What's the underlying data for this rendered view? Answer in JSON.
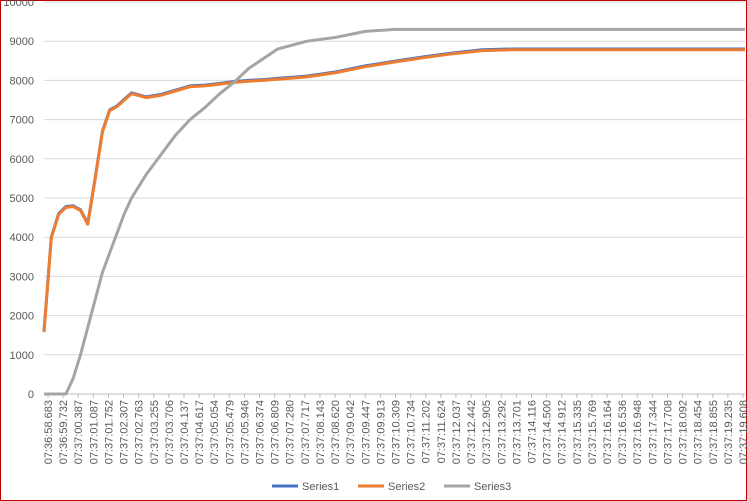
{
  "chart_data": {
    "type": "line",
    "title": "",
    "xlabel": "",
    "ylabel": "",
    "ylim": [
      0,
      10000
    ],
    "yticks": [
      0,
      1000,
      2000,
      3000,
      4000,
      5000,
      6000,
      7000,
      8000,
      9000,
      10000
    ],
    "grid": "horizontal",
    "legend": "bottom",
    "x_tick_labels": [
      "07:36:58.683",
      "07:36:59.732",
      "07:37:00.387",
      "07:37:01.087",
      "07:37:01.752",
      "07:37:02.307",
      "07:37:02.763",
      "07:37:03.255",
      "07:37:03.706",
      "07:37:04.137",
      "07:37:04.617",
      "07:37:05.054",
      "07:37:05.479",
      "07:37:05.946",
      "07:37:06.374",
      "07:37:06.809",
      "07:37:07.280",
      "07:37:07.717",
      "07:37:08.143",
      "07:37:08.620",
      "07:37:09.042",
      "07:37:09.447",
      "07:37:09.913",
      "07:37:10.309",
      "07:37:10.734",
      "07:37:11.202",
      "07:37:11.624",
      "07:37:12.037",
      "07:37:12.442",
      "07:37:12.905",
      "07:37:13.292",
      "07:37:13.701",
      "07:37:14.116",
      "07:37:14.500",
      "07:37:14.912",
      "07:37:15.335",
      "07:37:15.769",
      "07:37:16.164",
      "07:37:16.536",
      "07:37:16.948",
      "07:37:17.344",
      "07:37:17.708",
      "07:37:18.092",
      "07:37:18.454",
      "07:37:18.855",
      "07:37:19.235",
      "07:37:19.608"
    ],
    "x_index": [
      0,
      0.5,
      1,
      1.5,
      2,
      2.5,
      3,
      3.5,
      4,
      4.5,
      5,
      5.5,
      6,
      7,
      8,
      9,
      10,
      11,
      12,
      13,
      14,
      15,
      16,
      18,
      20,
      22,
      24,
      26,
      28,
      30,
      32,
      34,
      36,
      38,
      40,
      42,
      44,
      46,
      48
    ],
    "series": [
      {
        "name": "Series1",
        "color": "#4472c4",
        "values": [
          1600,
          4000,
          4600,
          4780,
          4800,
          4700,
          4350,
          5500,
          6700,
          7250,
          7350,
          7520,
          7680,
          7580,
          7640,
          7750,
          7860,
          7880,
          7920,
          7970,
          8000,
          8020,
          8050,
          8110,
          8220,
          8370,
          8490,
          8600,
          8700,
          8780,
          8800,
          8800,
          8800,
          8800,
          8800,
          8800,
          8800,
          8800,
          8800
        ]
      },
      {
        "name": "Series2",
        "color": "#ed7d31",
        "values": [
          1580,
          3980,
          4580,
          4760,
          4780,
          4680,
          4330,
          5480,
          6680,
          7230,
          7330,
          7500,
          7660,
          7560,
          7620,
          7730,
          7840,
          7860,
          7900,
          7950,
          7980,
          8000,
          8030,
          8090,
          8200,
          8350,
          8470,
          8580,
          8680,
          8760,
          8780,
          8780,
          8780,
          8780,
          8780,
          8780,
          8780,
          8780,
          8780
        ]
      },
      {
        "name": "Series3",
        "color": "#a5a5a5",
        "values": [
          0,
          0,
          0,
          0,
          400,
          1000,
          1700,
          2400,
          3100,
          3600,
          4100,
          4600,
          5000,
          5600,
          6100,
          6600,
          7000,
          7300,
          7650,
          7950,
          8300,
          8550,
          8800,
          9000,
          9100,
          9250,
          9300,
          9300,
          9300,
          9300,
          9300,
          9300,
          9300,
          9300,
          9300,
          9300,
          9300,
          9300,
          9300
        ]
      }
    ]
  }
}
